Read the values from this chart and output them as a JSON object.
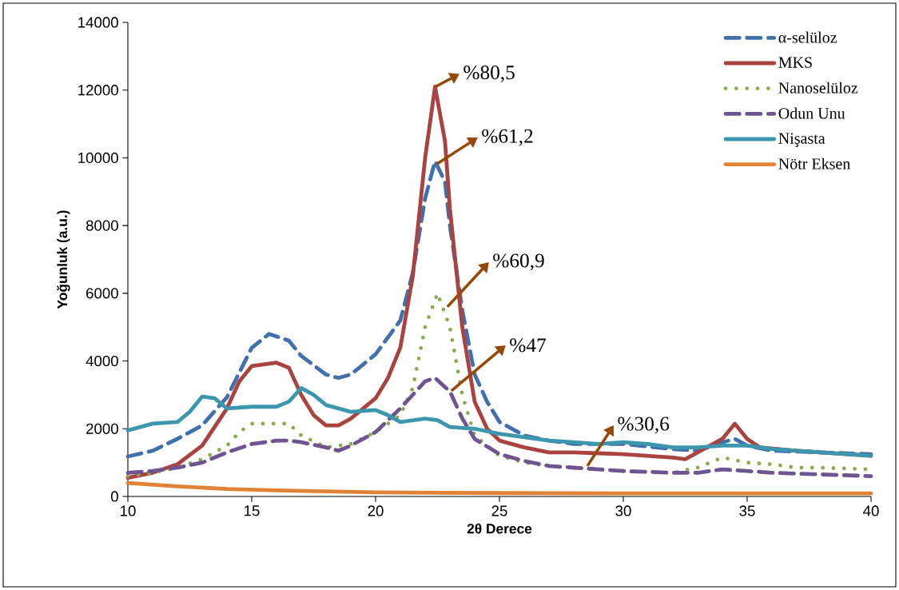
{
  "chart_data": {
    "type": "line",
    "xlabel": "2θ Derece",
    "ylabel": "Yoğunluk (a.u.)",
    "xlim": [
      10,
      40
    ],
    "ylim": [
      0,
      14000
    ],
    "xticks": [
      10,
      15,
      20,
      25,
      30,
      35,
      40
    ],
    "yticks": [
      0,
      2000,
      4000,
      6000,
      8000,
      10000,
      12000,
      14000
    ],
    "grid": false,
    "legend": "top right",
    "series": [
      {
        "name": "α-selüloz",
        "color": "#4170ad",
        "line_style": "dashed",
        "x": [
          10,
          11,
          12,
          13,
          14,
          15,
          15.7,
          16.5,
          17,
          18,
          18.5,
          19,
          20,
          21,
          21.5,
          22,
          22.4,
          22.8,
          23,
          23.5,
          24,
          24.5,
          25,
          26,
          27,
          28,
          30,
          32,
          33,
          34,
          34.5,
          35,
          36,
          38,
          40
        ],
        "values": [
          1180,
          1350,
          1700,
          2100,
          2930,
          4390,
          4800,
          4600,
          4150,
          3600,
          3500,
          3600,
          4200,
          5200,
          6600,
          8800,
          9900,
          9300,
          8000,
          5500,
          3600,
          2800,
          2200,
          1800,
          1650,
          1550,
          1550,
          1400,
          1350,
          1600,
          1700,
          1500,
          1350,
          1300,
          1250
        ]
      },
      {
        "name": "MKS",
        "color": "#aa4240",
        "line_style": "solid",
        "x": [
          10,
          11,
          12,
          13,
          14,
          14.5,
          15,
          16,
          16.5,
          17,
          17.5,
          18,
          18.5,
          19,
          20,
          20.5,
          21,
          21.5,
          22,
          22.4,
          22.8,
          23,
          23.5,
          24,
          24.5,
          25,
          26,
          27,
          28,
          30,
          32,
          32.5,
          33,
          34,
          34.5,
          35,
          35.5,
          37,
          40
        ],
        "values": [
          550,
          700,
          950,
          1500,
          2600,
          3400,
          3850,
          3950,
          3800,
          3000,
          2400,
          2100,
          2100,
          2300,
          2900,
          3500,
          4400,
          6500,
          10000,
          12100,
          10500,
          8500,
          5000,
          2800,
          2000,
          1650,
          1450,
          1300,
          1300,
          1250,
          1150,
          1100,
          1300,
          1700,
          2150,
          1700,
          1450,
          1350,
          1200
        ]
      },
      {
        "name": "Nanoselüloz",
        "color": "#8aaa4c",
        "line_style": "dotted",
        "x": [
          10,
          11,
          12,
          13,
          14,
          14.5,
          15,
          16,
          16.5,
          17,
          18,
          19,
          20,
          21,
          21.5,
          22,
          22.5,
          23,
          23.5,
          24,
          25,
          26,
          27,
          28,
          29,
          30,
          32,
          33,
          34,
          35,
          36,
          37,
          38,
          40
        ],
        "values": [
          600,
          700,
          850,
          1100,
          1500,
          1900,
          2150,
          2150,
          2150,
          1800,
          1450,
          1550,
          1900,
          2400,
          3200,
          5000,
          6000,
          5000,
          3000,
          1800,
          1200,
          1000,
          900,
          850,
          800,
          750,
          700,
          850,
          1150,
          1000,
          950,
          850,
          850,
          800
        ]
      },
      {
        "name": "Odun Unu",
        "color": "#6e5592",
        "line_style": "dashed",
        "x": [
          10,
          11,
          12,
          13,
          14,
          15,
          16,
          16.5,
          17,
          18,
          18.5,
          19,
          20,
          21,
          21.5,
          22,
          22.4,
          23,
          23.5,
          24,
          25,
          26,
          27,
          28,
          29,
          30,
          32,
          33,
          34,
          35,
          36,
          38,
          40
        ],
        "values": [
          700,
          750,
          850,
          1000,
          1300,
          1550,
          1650,
          1650,
          1600,
          1450,
          1350,
          1500,
          1900,
          2600,
          3000,
          3400,
          3500,
          3100,
          2300,
          1700,
          1250,
          1050,
          900,
          850,
          800,
          750,
          700,
          700,
          800,
          750,
          700,
          650,
          600
        ]
      },
      {
        "name": "Nişasta",
        "color": "#3c97ae",
        "line_style": "solid",
        "x": [
          10,
          11,
          12,
          12.5,
          13,
          13.5,
          14,
          15,
          16,
          16.5,
          17,
          17.5,
          18,
          19,
          20,
          20.5,
          21,
          22,
          22.5,
          23,
          24,
          25,
          26,
          27,
          28,
          29,
          30,
          31,
          32,
          33,
          34,
          35,
          36,
          38,
          40
        ],
        "values": [
          1950,
          2150,
          2200,
          2500,
          2950,
          2900,
          2600,
          2650,
          2650,
          2800,
          3200,
          3000,
          2700,
          2500,
          2550,
          2400,
          2200,
          2300,
          2250,
          2050,
          2000,
          1850,
          1750,
          1650,
          1600,
          1550,
          1600,
          1550,
          1450,
          1450,
          1500,
          1500,
          1400,
          1300,
          1200
        ]
      },
      {
        "name": "Nötr Eksen",
        "color": "#e08336",
        "line_style": "solid",
        "x": [
          10,
          12,
          14,
          16,
          18,
          20,
          25,
          30,
          40
        ],
        "values": [
          400,
          300,
          220,
          180,
          150,
          120,
          100,
          90,
          90
        ]
      }
    ],
    "annotations": [
      {
        "text": "%80,5",
        "x": 22.42,
        "y": 12100
      },
      {
        "text": "%61,2",
        "x": 22.48,
        "y": 9820
      },
      {
        "text": "%60,9",
        "x": 22.9,
        "y": 5600
      },
      {
        "text": "%47",
        "x": 23.06,
        "y": 3120
      },
      {
        "text": "%30,6",
        "x": 28.55,
        "y": 900
      }
    ]
  }
}
